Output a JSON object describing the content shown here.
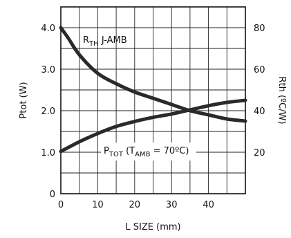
{
  "chart_data": {
    "type": "line",
    "xlabel": "L SIZE (mm)",
    "ylabel_left": "Ptot (W)",
    "ylabel_right": "Rth (ºC/W)",
    "xlim": [
      0,
      50
    ],
    "ylim_left": [
      0,
      4.5
    ],
    "ylim_right": [
      0,
      90
    ],
    "x_ticks": [
      "0",
      "10",
      "20",
      "30",
      "40"
    ],
    "y_left_ticks": [
      "0",
      "1.0",
      "2.0",
      "3.0",
      "4.0"
    ],
    "y_right_ticks": [
      "20",
      "40",
      "60",
      "80"
    ],
    "grid": true,
    "series": [
      {
        "name": "RTH J-AMB",
        "axis": "right",
        "x": [
          0,
          2,
          5,
          10,
          15,
          20,
          25,
          30,
          35,
          40,
          45,
          50
        ],
        "values": [
          80,
          75,
          67,
          58,
          53,
          49,
          46,
          43,
          40,
          38,
          36,
          35
        ]
      },
      {
        "name": "PTOT (TAMB = 70ºC)",
        "axis": "left",
        "x": [
          0,
          5,
          10,
          15,
          20,
          25,
          30,
          35,
          40,
          45,
          50
        ],
        "values": [
          1.02,
          1.25,
          1.45,
          1.62,
          1.74,
          1.84,
          1.92,
          2.02,
          2.12,
          2.2,
          2.25
        ]
      }
    ],
    "annotations": {
      "rth": {
        "main": "R",
        "sub": "TH",
        "rest": " J-AMB"
      },
      "ptot": {
        "main": "P",
        "sub": "TOT",
        "mid": " (T",
        "sub2": "AMB",
        "rest": " = 70ºC)"
      }
    }
  }
}
